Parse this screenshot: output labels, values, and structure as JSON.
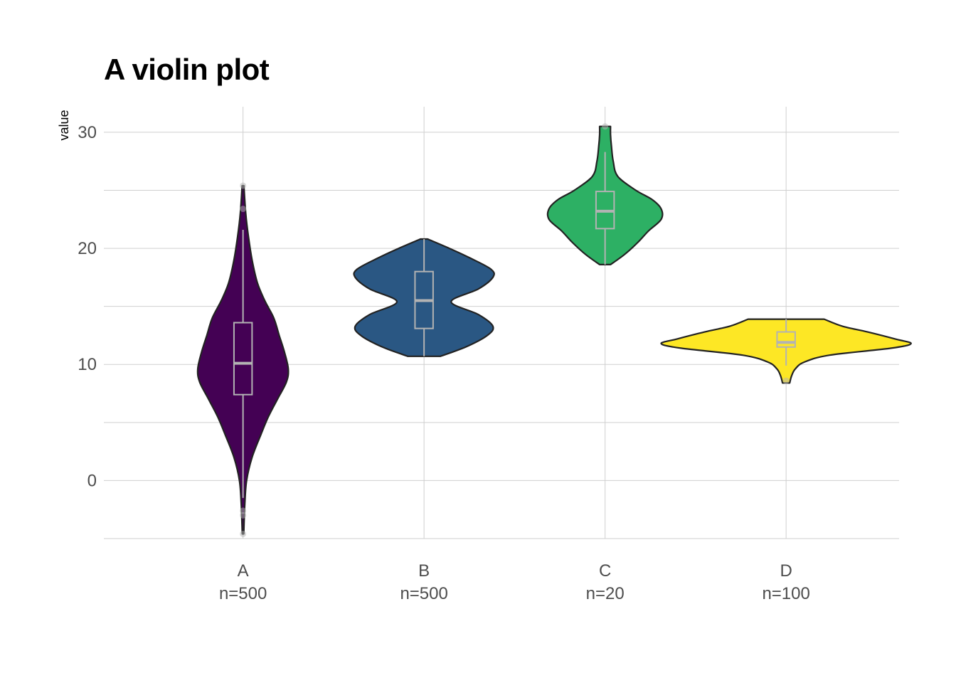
{
  "chart_data": {
    "type": "violin",
    "title": "A violin plot",
    "xlabel": "",
    "ylabel": "value",
    "ylim": [
      -5,
      32.2
    ],
    "y_ticks": [
      0,
      10,
      20,
      30
    ],
    "grid": true,
    "legend": "none",
    "categories": [
      "A",
      "B",
      "C",
      "D"
    ],
    "counts": [
      "n=500",
      "n=500",
      "n=20",
      "n=100"
    ],
    "colors": [
      "#440154",
      "#2a5783",
      "#2db064",
      "#fde725"
    ],
    "box_color": "#b3b3b3",
    "outline_color": "#222222",
    "box_width": 0.1,
    "series": [
      {
        "category": "A",
        "density": [
          [
            -4.6,
            0.004
          ],
          [
            -2,
            0.01
          ],
          [
            0,
            0.02
          ],
          [
            2,
            0.05
          ],
          [
            4,
            0.1
          ],
          [
            5.5,
            0.14
          ],
          [
            7,
            0.19
          ],
          [
            8.5,
            0.24
          ],
          [
            9.6,
            0.25
          ],
          [
            11,
            0.23
          ],
          [
            12.5,
            0.2
          ],
          [
            14,
            0.17
          ],
          [
            15.5,
            0.12
          ],
          [
            17,
            0.08
          ],
          [
            19,
            0.05
          ],
          [
            21,
            0.03
          ],
          [
            23,
            0.015
          ],
          [
            25.4,
            0.005
          ]
        ],
        "box": {
          "min": -1.5,
          "q1": 7.4,
          "median": 10.1,
          "q3": 13.6,
          "max": 21.6
        },
        "outliers": [
          -4.6,
          -3.0,
          -2.6,
          23.4,
          25.4
        ]
      },
      {
        "category": "B",
        "density": [
          [
            10.7,
            0.09
          ],
          [
            11.5,
            0.23
          ],
          [
            12.5,
            0.35
          ],
          [
            13.3,
            0.38
          ],
          [
            14.3,
            0.3
          ],
          [
            15.4,
            0.15
          ],
          [
            16.5,
            0.3
          ],
          [
            17.5,
            0.38
          ],
          [
            18.2,
            0.37
          ],
          [
            19.2,
            0.25
          ],
          [
            20.0,
            0.14
          ],
          [
            20.8,
            0.02
          ]
        ],
        "box": {
          "min": 10.7,
          "q1": 13.1,
          "median": 15.5,
          "q3": 18.0,
          "max": 20.8
        },
        "outliers": []
      },
      {
        "category": "C",
        "density": [
          [
            18.6,
            0.03
          ],
          [
            19.5,
            0.11
          ],
          [
            20.5,
            0.18
          ],
          [
            21.5,
            0.24
          ],
          [
            22.5,
            0.31
          ],
          [
            23.4,
            0.31
          ],
          [
            24.2,
            0.26
          ],
          [
            25.0,
            0.17
          ],
          [
            26.2,
            0.07
          ],
          [
            27.5,
            0.045
          ],
          [
            28.8,
            0.035
          ],
          [
            29.8,
            0.03
          ],
          [
            30.5,
            0.03
          ]
        ],
        "box": {
          "min": 18.6,
          "q1": 21.7,
          "median": 23.2,
          "q3": 24.9,
          "max": 28.3
        },
        "outliers": [
          30.5
        ]
      },
      {
        "category": "D",
        "density": [
          [
            8.4,
            0.02
          ],
          [
            9.0,
            0.03
          ],
          [
            9.6,
            0.05
          ],
          [
            10.2,
            0.1
          ],
          [
            10.8,
            0.24
          ],
          [
            11.4,
            0.58
          ],
          [
            11.8,
            0.69
          ],
          [
            12.2,
            0.6
          ],
          [
            12.8,
            0.45
          ],
          [
            13.3,
            0.31
          ],
          [
            13.9,
            0.21
          ]
        ],
        "box": {
          "min": 9.9,
          "q1": 11.5,
          "median": 11.9,
          "q3": 12.8,
          "max": 13.9
        },
        "outliers": [
          8.6
        ]
      }
    ]
  }
}
